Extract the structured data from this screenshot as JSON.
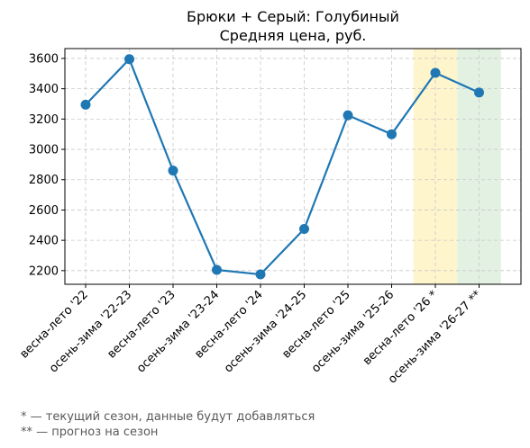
{
  "chart_data": {
    "type": "line",
    "title": "Брюки + Серый: Голубиный",
    "subtitle": "Средняя цена, руб.",
    "xlabel": "",
    "ylabel": "",
    "categories": [
      "весна-лето '22",
      "осень-зима '22-23",
      "весна-лето '23",
      "осень-зима '23-24",
      "весна-лето '24",
      "осень-зима '24-25",
      "весна-лето '25",
      "осень-зима '25-26",
      "весна-лето '26 *",
      "осень-зима '26-27 **"
    ],
    "series": [
      {
        "values": [
          3295,
          3595,
          2860,
          2205,
          2175,
          2475,
          3225,
          3100,
          3505,
          3375
        ]
      }
    ],
    "ylim": [
      2110,
      3665
    ],
    "yticks": [
      2200,
      2400,
      2600,
      2800,
      3000,
      3200,
      3400,
      3600
    ],
    "grid": true,
    "highlights": [
      {
        "category_index": 8,
        "color": "#fff5cc"
      },
      {
        "category_index": 9,
        "color": "#e3f1e2"
      }
    ],
    "line_color": "#1f77b4"
  },
  "footnotes": [
    "* — текущий сезон, данные будут добавляться",
    "** — прогноз на сезон"
  ]
}
